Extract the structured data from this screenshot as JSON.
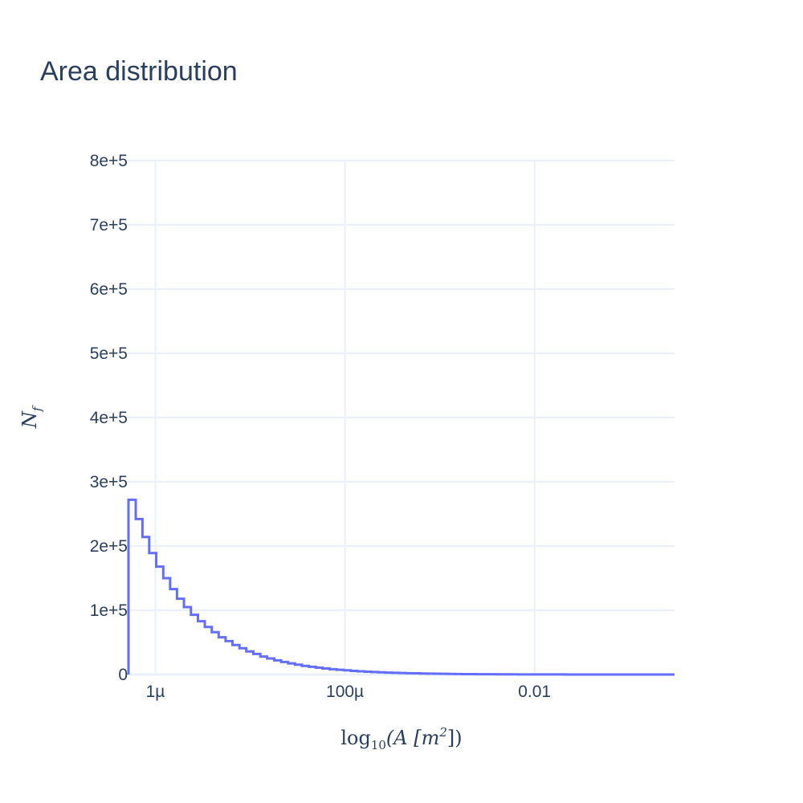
{
  "chart_data": {
    "type": "histogram",
    "title": "Area distribution",
    "xlabel": {
      "log": "log",
      "sub": "10",
      "body": "(A [m",
      "sup": "2",
      "end": "])"
    },
    "ylabel": {
      "main": "N",
      "sub": "f"
    },
    "x_scale": "log",
    "xlim": [
      5e-07,
      0.3
    ],
    "ylim": [
      0,
      800000
    ],
    "x_ticks": [
      {
        "value": 1e-06,
        "label": "1µ"
      },
      {
        "value": 0.0001,
        "label": "100µ"
      },
      {
        "value": 0.01,
        "label": "0.01"
      }
    ],
    "y_ticks": [
      {
        "value": 0,
        "label": "0"
      },
      {
        "value": 100000,
        "label": "1e+5"
      },
      {
        "value": 200000,
        "label": "2e+5"
      },
      {
        "value": 300000,
        "label": "3e+5"
      },
      {
        "value": 400000,
        "label": "4e+5"
      },
      {
        "value": 500000,
        "label": "5e+5"
      },
      {
        "value": 600000,
        "label": "6e+5"
      },
      {
        "value": 700000,
        "label": "7e+5"
      },
      {
        "value": 800000,
        "label": "8e+5"
      }
    ],
    "grid": true,
    "series_color": "#636efa",
    "bin_edges": [
      5.2e-07,
      6.2e-07,
      7.3e-07,
      8.6e-07,
      1.02e-06,
      1.21e-06,
      1.43e-06,
      1.69e-06,
      2e-06,
      2.37e-06,
      2.81e-06,
      3.32e-06,
      3.93e-06,
      4.65e-06,
      5.5e-06,
      6.5e-06,
      7.7e-06,
      9.1e-06,
      1.08e-05,
      1.28e-05,
      1.51e-05,
      1.79e-05,
      2.12e-05,
      2.51e-05,
      2.97e-05,
      3.51e-05,
      4.16e-05,
      4.92e-05,
      5.8e-05,
      6.9e-05,
      8.2e-05,
      9.7e-05,
      0.000115,
      0.000136,
      0.000161,
      0.00019,
      0.000225,
      0.000266,
      0.000315,
      0.000373,
      0.000441,
      0.00052,
      0.00062,
      0.00073,
      0.00087,
      0.00103,
      0.00122,
      0.00144,
      0.00171,
      0.00202,
      0.00239,
      0.00283,
      0.00335,
      0.00396,
      0.00469,
      0.00555,
      0.0066,
      0.0078,
      0.0092,
      0.0109,
      0.0129,
      0.0153,
      0.0181,
      0.0214,
      0.0253,
      0.03,
      0.0355,
      0.042,
      0.0497,
      0.059,
      0.07,
      0.082,
      0.097,
      0.115,
      0.136,
      0.161,
      0.19,
      0.225,
      0.266,
      0.3
    ],
    "counts": [
      272000,
      242000,
      214000,
      189000,
      168000,
      150000,
      133000,
      118000,
      105000,
      93000,
      83000,
      74000,
      66000,
      58000,
      52000,
      46000,
      41000,
      36000,
      32000,
      28000,
      25000,
      22000,
      19500,
      17300,
      15300,
      13500,
      12000,
      10600,
      9400,
      8300,
      7300,
      6500,
      5700,
      5000,
      4400,
      3900,
      3400,
      3000,
      2600,
      2300,
      2000,
      1800,
      1600,
      1400,
      1200,
      1050,
      920,
      800,
      700,
      610,
      530,
      460,
      400,
      350,
      300,
      260,
      220,
      190,
      160,
      140,
      120,
      100,
      90,
      75,
      65,
      55,
      47,
      40,
      34,
      29,
      25,
      21,
      18,
      15,
      13,
      11,
      9,
      8,
      7
    ]
  }
}
